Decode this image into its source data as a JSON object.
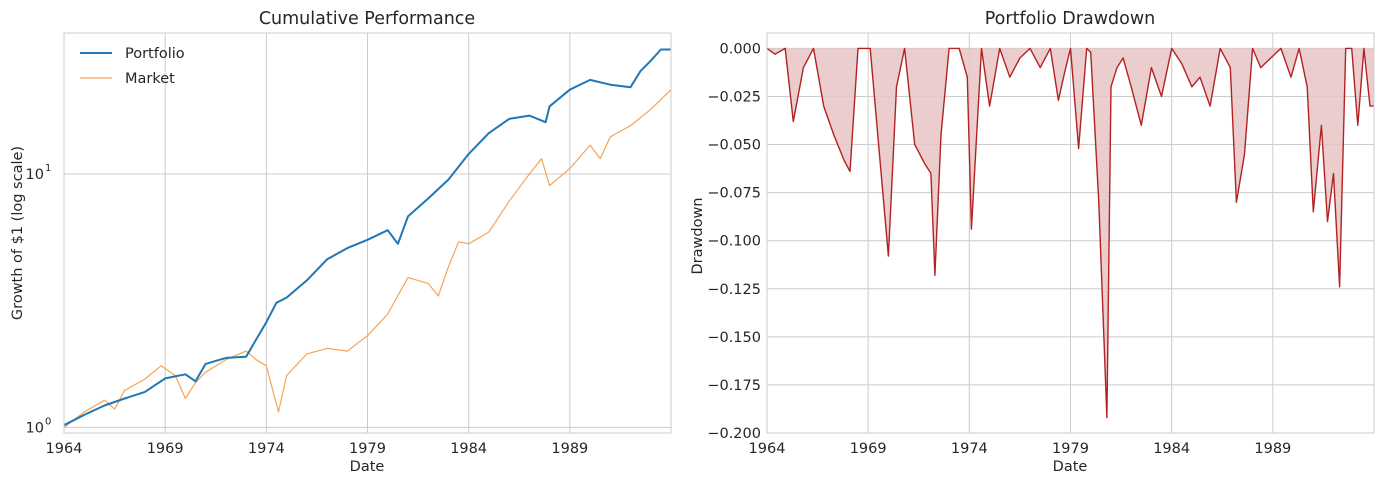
{
  "chart_data": [
    {
      "type": "line",
      "title": "Cumulative Performance",
      "xlabel": "Date",
      "ylabel": "Growth of $1 (log scale)",
      "y_scale": "log",
      "ylim": [
        0.95,
        36
      ],
      "xlim": [
        1964.0,
        1994.0
      ],
      "x_ticks": [
        1964,
        1969,
        1974,
        1979,
        1984,
        1989
      ],
      "x_tick_labels": [
        "1964",
        "1969",
        "1974",
        "1979",
        "1984",
        "1989"
      ],
      "y_ticks": [
        1,
        10
      ],
      "y_tick_label_base": "10",
      "y_tick_label_exponents": [
        "0",
        "1"
      ],
      "legend_position": "top-left",
      "grid": true,
      "series": [
        {
          "name": "Portfolio",
          "color": "#1f77b4",
          "x": [
            1964.0,
            1965.0,
            1966.0,
            1967.0,
            1968.0,
            1969.0,
            1970.0,
            1970.5,
            1971.0,
            1972.0,
            1973.0,
            1974.0,
            1974.5,
            1975.0,
            1976.0,
            1977.0,
            1978.0,
            1979.0,
            1980.0,
            1980.5,
            1981.0,
            1982.0,
            1983.0,
            1984.0,
            1985.0,
            1986.0,
            1987.0,
            1987.8,
            1988.0,
            1989.0,
            1990.0,
            1991.0,
            1992.0,
            1992.5,
            1993.0,
            1993.5,
            1994.0
          ],
          "values": [
            1.02,
            1.12,
            1.22,
            1.3,
            1.38,
            1.56,
            1.62,
            1.52,
            1.78,
            1.88,
            1.9,
            2.6,
            3.1,
            3.25,
            3.8,
            4.6,
            5.1,
            5.5,
            6.0,
            5.3,
            6.8,
            8.0,
            9.5,
            12.0,
            14.5,
            16.5,
            17.0,
            16.0,
            18.5,
            21.5,
            23.5,
            22.5,
            22.0,
            25.5,
            28.0,
            31.0,
            31.0
          ]
        },
        {
          "name": "Market",
          "color": "#f4a557",
          "x": [
            1964.0,
            1965.0,
            1966.0,
            1966.5,
            1967.0,
            1968.0,
            1968.8,
            1969.5,
            1970.0,
            1970.5,
            1971.0,
            1972.0,
            1973.0,
            1973.5,
            1974.0,
            1974.6,
            1975.0,
            1976.0,
            1977.0,
            1978.0,
            1979.0,
            1980.0,
            1981.0,
            1982.0,
            1982.5,
            1983.0,
            1983.5,
            1984.0,
            1985.0,
            1986.0,
            1987.0,
            1987.6,
            1988.0,
            1989.0,
            1990.0,
            1990.5,
            1991.0,
            1992.0,
            1993.0,
            1994.0
          ],
          "values": [
            1.0,
            1.15,
            1.28,
            1.18,
            1.4,
            1.55,
            1.75,
            1.6,
            1.3,
            1.5,
            1.65,
            1.85,
            2.0,
            1.85,
            1.75,
            1.15,
            1.6,
            1.95,
            2.05,
            2.0,
            2.3,
            2.8,
            3.9,
            3.7,
            3.3,
            4.3,
            5.4,
            5.3,
            5.9,
            7.8,
            10.0,
            11.5,
            9.0,
            10.5,
            13.0,
            11.5,
            14.0,
            15.5,
            18.0,
            21.5
          ]
        }
      ]
    },
    {
      "type": "area",
      "title": "Portfolio Drawdown",
      "xlabel": "Date",
      "ylabel": "Drawdown",
      "ylim": [
        -0.2,
        0.008
      ],
      "xlim": [
        1964.0,
        1994.0
      ],
      "x_ticks": [
        1964,
        1969,
        1974,
        1979,
        1984,
        1989
      ],
      "x_tick_labels": [
        "1964",
        "1969",
        "1974",
        "1979",
        "1984",
        "1989"
      ],
      "y_ticks": [
        0.0,
        -0.025,
        -0.05,
        -0.075,
        -0.1,
        -0.125,
        -0.15,
        -0.175,
        -0.2
      ],
      "y_tick_labels": [
        "0.000",
        "−0.025",
        "−0.050",
        "−0.075",
        "−0.100",
        "−0.125",
        "−0.150",
        "−0.175",
        "−0.200"
      ],
      "grid": true,
      "series": [
        {
          "name": "Drawdown",
          "color": "#b22222",
          "fill_color": "#e8c4c4",
          "x": [
            1964.0,
            1964.4,
            1964.9,
            1965.3,
            1965.8,
            1966.3,
            1966.8,
            1967.3,
            1967.8,
            1968.1,
            1968.5,
            1969.1,
            1969.6,
            1970.0,
            1970.4,
            1970.8,
            1971.3,
            1971.8,
            1972.1,
            1972.3,
            1972.6,
            1973.0,
            1973.5,
            1973.9,
            1974.1,
            1974.6,
            1975.0,
            1975.5,
            1976.0,
            1976.5,
            1977.0,
            1977.5,
            1978.0,
            1978.4,
            1978.7,
            1979.0,
            1979.4,
            1979.8,
            1980.0,
            1980.4,
            1980.8,
            1981.0,
            1981.3,
            1981.6,
            1982.0,
            1982.5,
            1983.0,
            1983.5,
            1984.0,
            1984.5,
            1985.0,
            1985.4,
            1985.9,
            1986.4,
            1986.9,
            1987.2,
            1987.6,
            1988.0,
            1988.4,
            1988.9,
            1989.4,
            1989.9,
            1990.3,
            1990.7,
            1991.0,
            1991.4,
            1991.7,
            1992.0,
            1992.3,
            1992.6,
            1992.9,
            1993.2,
            1993.5,
            1993.8,
            1994.0
          ],
          "values": [
            0.0,
            -0.003,
            0.0,
            -0.038,
            -0.01,
            0.0,
            -0.03,
            -0.045,
            -0.058,
            -0.064,
            0.0,
            0.0,
            -0.06,
            -0.108,
            -0.02,
            0.0,
            -0.05,
            -0.06,
            -0.065,
            -0.118,
            -0.045,
            0.0,
            0.0,
            -0.015,
            -0.094,
            0.0,
            -0.03,
            0.0,
            -0.015,
            -0.005,
            0.0,
            -0.01,
            0.0,
            -0.027,
            -0.013,
            0.0,
            -0.052,
            0.0,
            -0.002,
            -0.08,
            -0.192,
            -0.02,
            -0.01,
            -0.005,
            -0.02,
            -0.04,
            -0.01,
            -0.025,
            0.0,
            -0.008,
            -0.02,
            -0.015,
            -0.03,
            0.0,
            -0.01,
            -0.08,
            -0.055,
            0.0,
            -0.01,
            -0.005,
            0.0,
            -0.015,
            0.0,
            -0.02,
            -0.085,
            -0.04,
            -0.09,
            -0.065,
            -0.124,
            0.0,
            0.0,
            -0.04,
            0.0,
            -0.03,
            -0.03
          ]
        }
      ]
    }
  ]
}
